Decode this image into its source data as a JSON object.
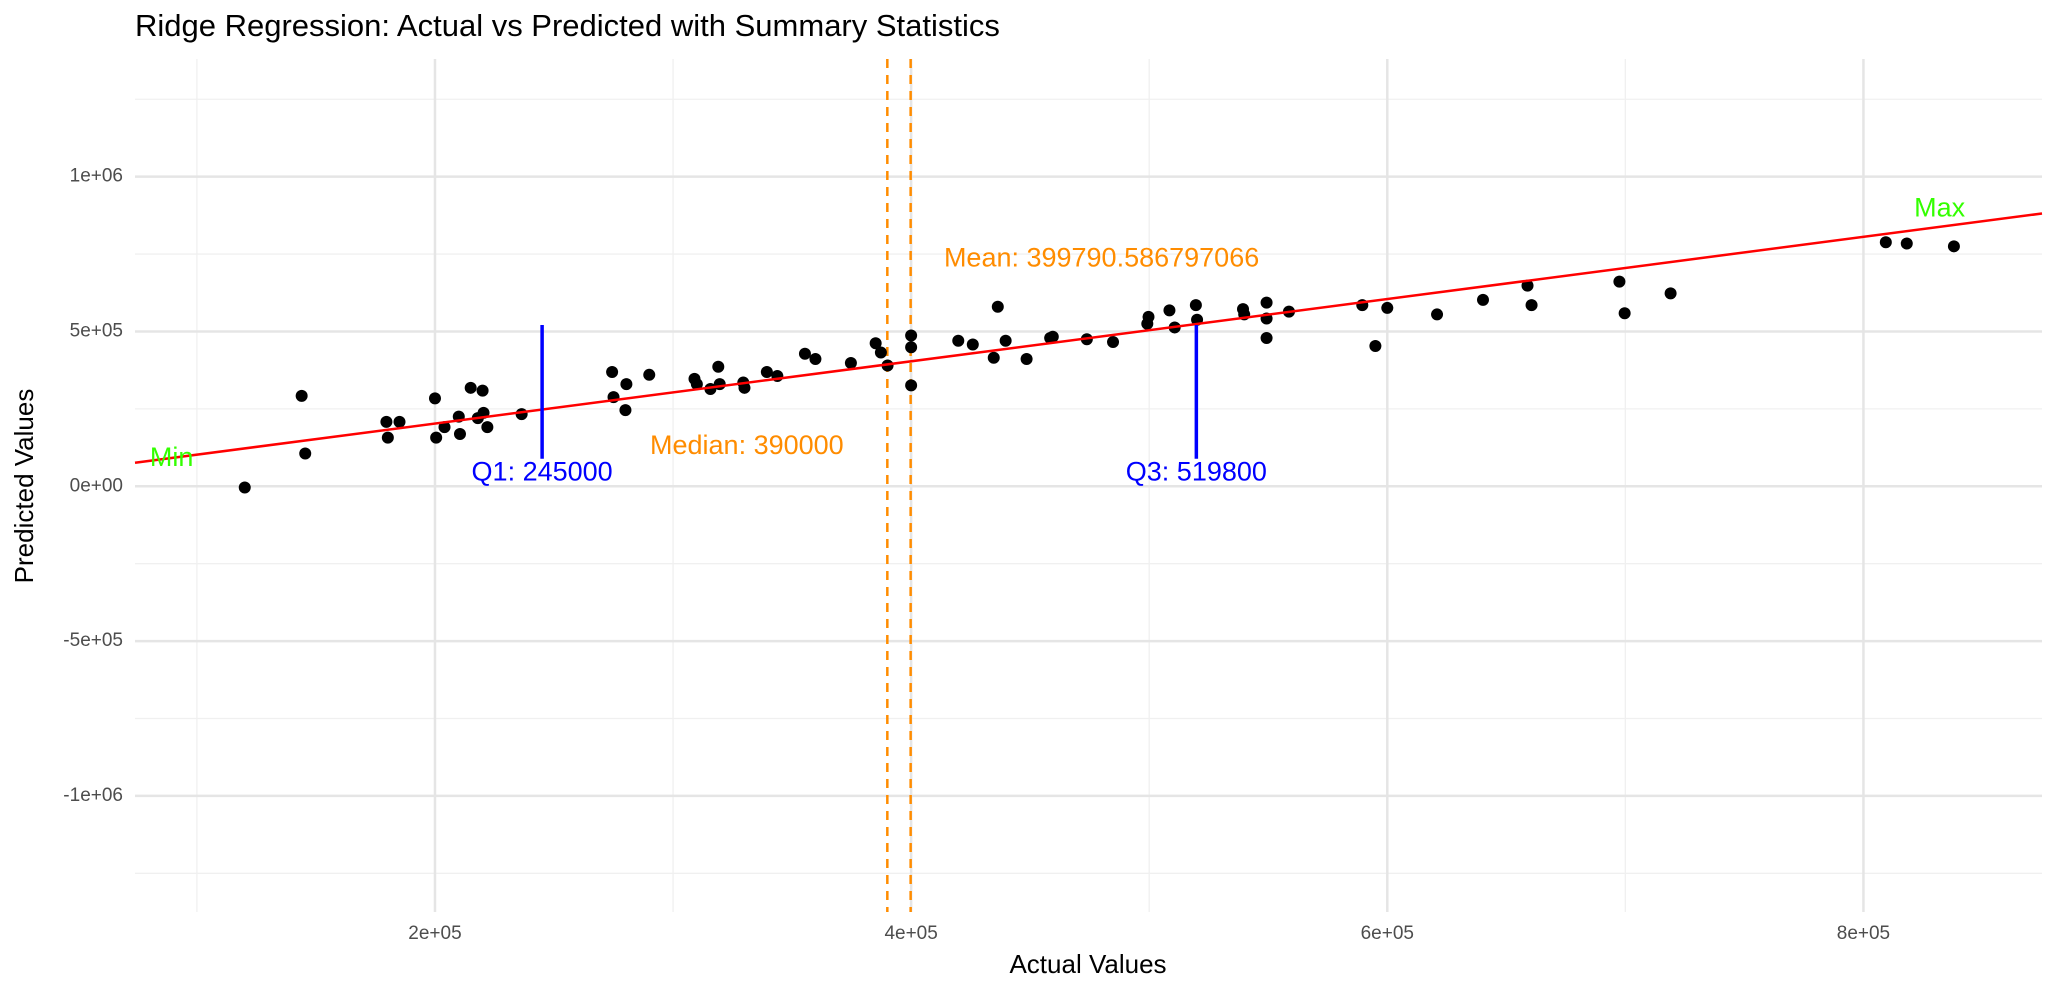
{
  "chart_data": {
    "type": "scatter",
    "title": "Ridge Regression: Actual vs Predicted with Summary Statistics",
    "x_label": "Actual Values",
    "y_label": "Predicted Values",
    "xlim": [
      74000,
      875000
    ],
    "ylim": [
      -1375000,
      1380000
    ],
    "xticks": [
      {
        "value": 200000,
        "label": "2e+05"
      },
      {
        "value": 400000,
        "label": "4e+05"
      },
      {
        "value": 600000,
        "label": "6e+05"
      },
      {
        "value": 800000,
        "label": "8e+05"
      }
    ],
    "yticks": [
      {
        "value": -1000000,
        "label": "-1e+06"
      },
      {
        "value": -500000,
        "label": "-5e+05"
      },
      {
        "value": 0,
        "label": "0e+00"
      },
      {
        "value": 500000,
        "label": "5e+05"
      },
      {
        "value": 1000000,
        "label": "1e+06"
      }
    ],
    "x_minor_ticks": [
      100000,
      300000,
      500000,
      700000
    ],
    "y_minor_ticks": [
      -1250000,
      -750000,
      -250000,
      250000,
      750000,
      1250000
    ],
    "grid": true,
    "point_color": "#000000",
    "x": [
      120100,
      144000,
      145500,
      179600,
      180200,
      185100,
      200000,
      200500,
      204000,
      210000,
      210500,
      215000,
      218000,
      220000,
      220400,
      222000,
      236400,
      274400,
      275000,
      280000,
      280400,
      290000,
      309000,
      310000,
      315700,
      319000,
      319600,
      329500,
      330000,
      339400,
      343800,
      355400,
      359800,
      374700,
      385100,
      387300,
      390100,
      400000,
      400000,
      400000,
      419800,
      425900,
      434700,
      436400,
      439700,
      448500,
      458400,
      459500,
      473800,
      484800,
      499200,
      499700,
      508500,
      510700,
      519600,
      520100,
      539400,
      539900,
      549300,
      549300,
      549300,
      558700,
      589500,
      595000,
      600000,
      620900,
      640200,
      658900,
      660600,
      697500,
      699700,
      719000,
      809400,
      818200,
      838000
    ],
    "y": [
      -4000,
      292000,
      106000,
      208000,
      157000,
      208000,
      284000,
      157000,
      191000,
      225000,
      169000,
      318000,
      220000,
      309000,
      237000,
      191000,
      233000,
      369000,
      288000,
      246000,
      330000,
      360000,
      347000,
      330000,
      314000,
      386000,
      330000,
      335000,
      318000,
      369000,
      356000,
      428000,
      411000,
      398000,
      462000,
      432000,
      390000,
      487000,
      449000,
      326000,
      470000,
      458000,
      415000,
      580000,
      470000,
      411000,
      479000,
      483000,
      475000,
      466000,
      525000,
      547000,
      568000,
      513000,
      585000,
      538000,
      572000,
      555000,
      593000,
      542000,
      479000,
      564000,
      585000,
      453000,
      576000,
      555000,
      602000,
      648000,
      585000,
      661000,
      559000,
      623000,
      788000,
      784000,
      775000
    ],
    "fit_line": {
      "color": "#ff0000",
      "x": [
        74000,
        875000
      ],
      "y": [
        76000,
        881000
      ]
    },
    "reference_lines": [
      {
        "x": 390000,
        "color": "#ff8c00",
        "dashed": true
      },
      {
        "x": 399790.586797066,
        "color": "#ff8c00",
        "dashed": true
      }
    ],
    "segments": [
      {
        "x": 245000,
        "y": [
          89000,
          521000
        ],
        "color": "#0000ff"
      },
      {
        "x": 519800,
        "y": [
          89000,
          521000
        ],
        "color": "#0000ff"
      }
    ],
    "annotations": [
      {
        "text": "Min",
        "x": 89400,
        "y": 89000,
        "color": "#33ff00"
      },
      {
        "text": "Max",
        "x": 832000,
        "y": 894000,
        "color": "#33ff00"
      },
      {
        "text": "Q1: 245000",
        "x": 245000,
        "y": 42000,
        "color": "#0000ff"
      },
      {
        "text": "Q3: 519800",
        "x": 519800,
        "y": 42000,
        "color": "#0000ff"
      },
      {
        "text": "Median: 390000",
        "x": 331000,
        "y": 127000,
        "color": "#ff8c00"
      },
      {
        "text": "Mean: 399790.586797066",
        "x": 480000,
        "y": 733000,
        "color": "#ff8c00"
      }
    ]
  }
}
